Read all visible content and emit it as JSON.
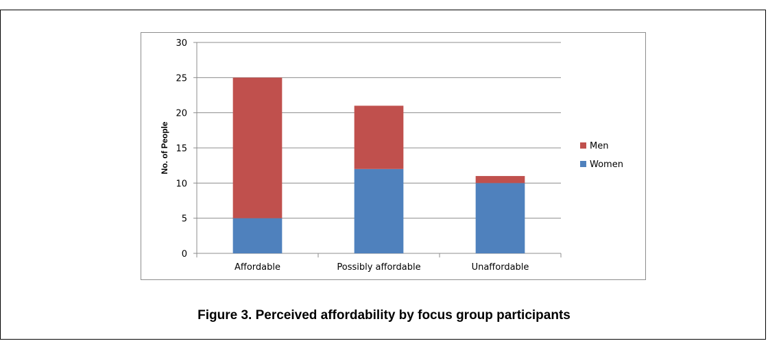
{
  "caption": "Figure 3. Perceived affordability by focus group participants",
  "chart_data": {
    "type": "bar",
    "stacked": true,
    "categories": [
      "Affordable",
      "Possibly affordable",
      "Unaffordable"
    ],
    "series": [
      {
        "name": "Women",
        "values": [
          5,
          12,
          10
        ],
        "color": "#4f81bd"
      },
      {
        "name": "Men",
        "values": [
          20,
          9,
          1
        ],
        "color": "#c0504d"
      }
    ],
    "ylabel": "No. of People",
    "xlabel": "",
    "ylim": [
      0,
      30
    ],
    "yticks": [
      0,
      5,
      10,
      15,
      20,
      25,
      30
    ],
    "grid": true,
    "legend_position": "right",
    "legend_order": [
      "Men",
      "Women"
    ]
  }
}
